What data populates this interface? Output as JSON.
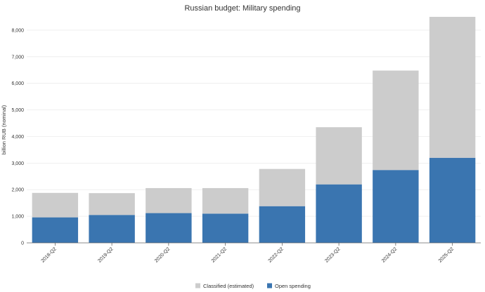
{
  "chart_data": {
    "type": "bar",
    "stacked": true,
    "title": "Russian budget: Military spending",
    "xlabel": "",
    "ylabel": "billion RUB (nominal)",
    "categories": [
      "2018-Q2",
      "2019-Q2",
      "2020-Q2",
      "2021-Q2",
      "2022-Q2",
      "2023-Q2",
      "2024-Q2",
      "2025-Q2"
    ],
    "series": [
      {
        "name": "Open spending",
        "color": "#3a75b0",
        "values": [
          960,
          1050,
          1120,
          1100,
          1380,
          2200,
          2740,
          3200
        ]
      },
      {
        "name": "Classified (estimated)",
        "color": "#cccccc",
        "values": [
          920,
          820,
          940,
          960,
          1400,
          2150,
          3740,
          5300
        ]
      }
    ],
    "ylim": [
      0,
      8500
    ],
    "yticks": [
      0,
      1000,
      2000,
      3000,
      4000,
      5000,
      6000,
      7000,
      8000
    ],
    "ytick_labels": [
      "0",
      "1,000",
      "2,000",
      "3,000",
      "4,000",
      "5,000",
      "6,000",
      "7,000",
      "8,000"
    ],
    "grid": true,
    "legend": {
      "position": "bottom-center",
      "entries": [
        "Classified (estimated)",
        "Open spending"
      ]
    }
  }
}
